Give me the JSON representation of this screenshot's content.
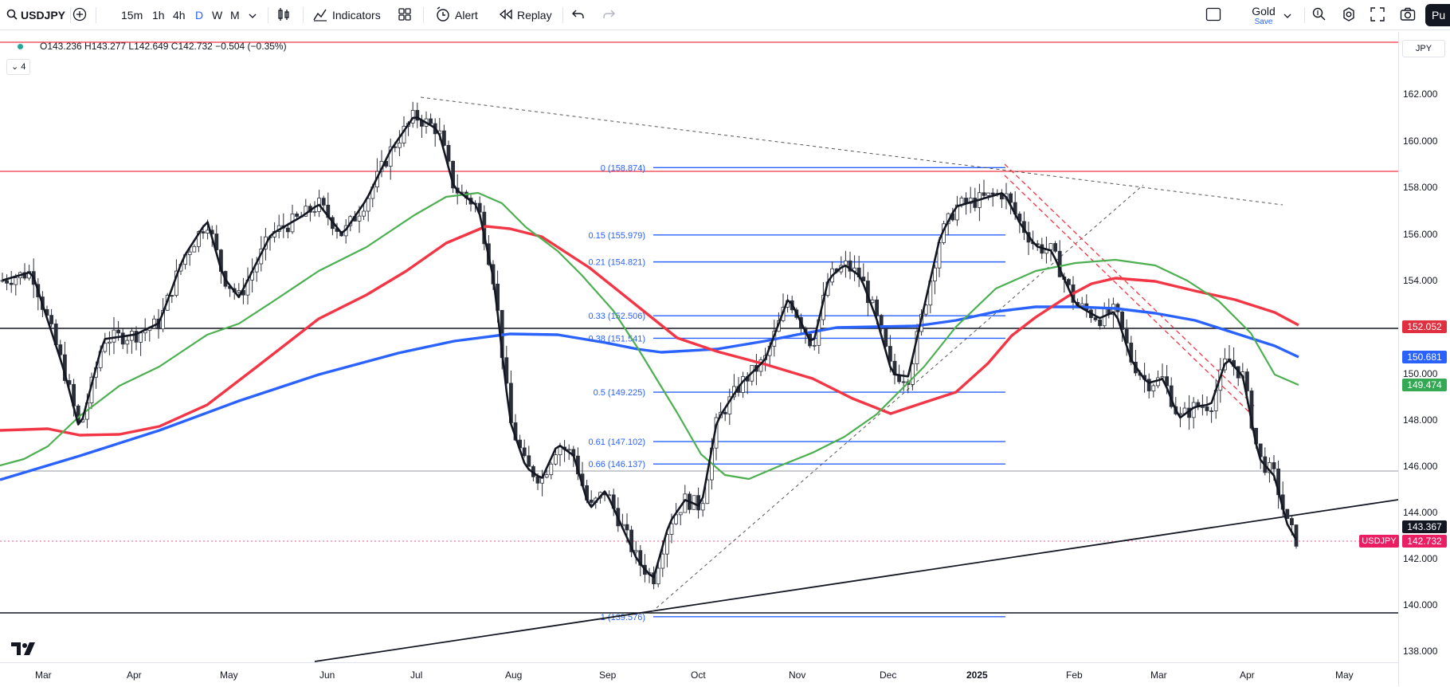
{
  "toolbar": {
    "symbol": "USDJPY",
    "intervals": [
      "15m",
      "1h",
      "4h",
      "D",
      "W",
      "M"
    ],
    "active_interval": "D",
    "indicators_label": "Indicators",
    "alert_label": "Alert",
    "replay_label": "Replay",
    "layout_name": "Gold",
    "layout_sub": "Save",
    "publish_label": "Pu"
  },
  "legend": {
    "ohlc": "O143.236  H143.277  L142.649  C142.732  −0.504 (−0.35%)",
    "collapse": "4"
  },
  "price_axis": {
    "currency": "JPY",
    "ticks": [
      "162.000",
      "160.000",
      "158.000",
      "156.000",
      "154.000",
      "150.000",
      "148.000",
      "146.000",
      "144.000",
      "142.000",
      "140.000",
      "138.000"
    ],
    "labels": [
      {
        "text": "152.052",
        "color": "#e0303f"
      },
      {
        "text": "150.681",
        "color": "#2962ff"
      },
      {
        "text": "149.474",
        "color": "#34a853"
      },
      {
        "text": "143.367",
        "color": "#131722"
      },
      {
        "text": "142.732",
        "color": "#e91e63"
      }
    ],
    "symbol_tag": "USDJPY"
  },
  "date_axis": [
    "Mar",
    "Apr",
    "May",
    "Jun",
    "Jul",
    "Aug",
    "Sep",
    "Oct",
    "Nov",
    "Dec",
    "2025",
    "Feb",
    "Mar",
    "Apr",
    "May"
  ],
  "fib_levels": [
    {
      "label": "0 (158.874)",
      "value": 158.874
    },
    {
      "label": "0.15 (155.979)",
      "value": 155.979
    },
    {
      "label": "0.21 (154.821)",
      "value": 154.821
    },
    {
      "label": "0.33 (152.506)",
      "value": 152.506
    },
    {
      "label": "0.38 (151.541)",
      "value": 151.541
    },
    {
      "label": "0.5 (149.225)",
      "value": 149.225
    },
    {
      "label": "0.61 (147.102)",
      "value": 147.102
    },
    {
      "label": "0.66 (146.137)",
      "value": 146.137
    },
    {
      "label": "1 (139.576)",
      "value": 139.576
    }
  ],
  "colors": {
    "up": "#089981",
    "down": "#f23645",
    "fib": "#2962ff",
    "ma_fast": "#131722",
    "ma_green": "#4caf50",
    "ma_red": "#f23645",
    "ma_blue": "#2962ff"
  }
}
